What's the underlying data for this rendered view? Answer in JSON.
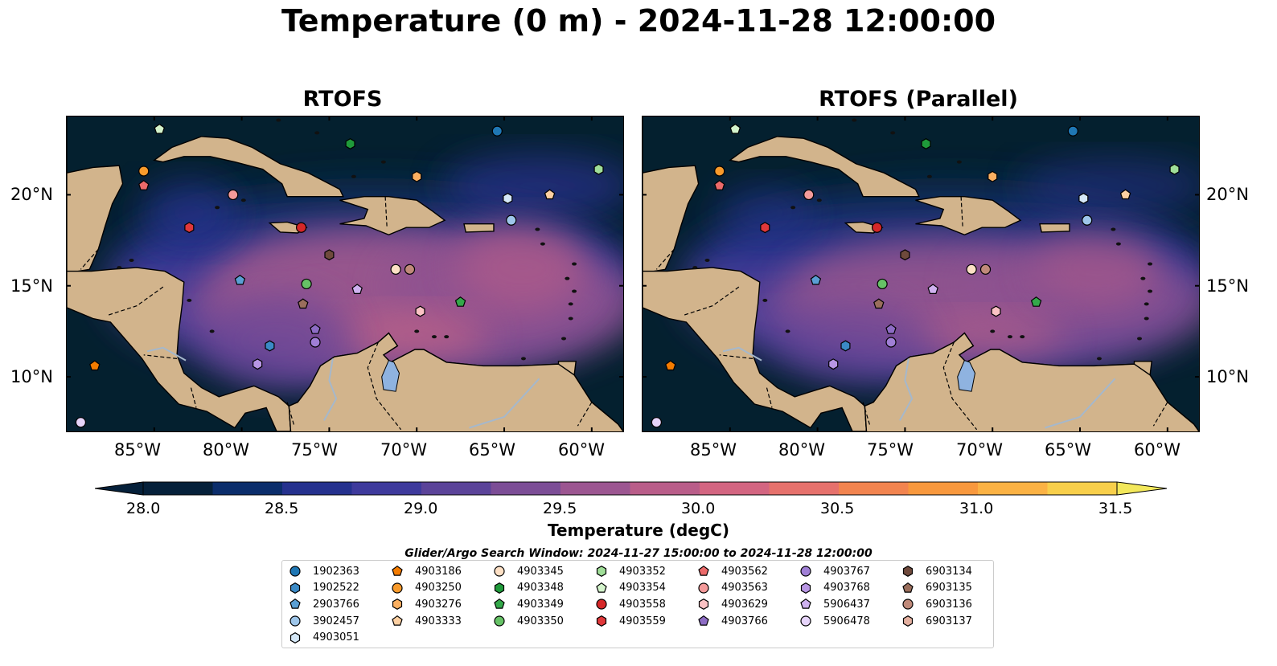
{
  "suptitle": "Temperature (0 m) - 2024-11-28 12:00:00",
  "panels": [
    {
      "title": "RTOFS"
    },
    {
      "title": "RTOFS (Parallel)"
    }
  ],
  "map": {
    "lat_labels": [
      "20°N",
      "15°N",
      "10°N"
    ],
    "lon_labels": [
      "85°W",
      "80°W",
      "75°W",
      "70°W",
      "65°W",
      "60°W"
    ],
    "land_color": "#d2b48c",
    "ocean_deep_color": "#04202f"
  },
  "colorbar": {
    "label": "Temperature (degC)",
    "ticks": [
      "28.0",
      "28.5",
      "29.0",
      "29.5",
      "30.0",
      "30.5",
      "31.0",
      "31.5"
    ],
    "range": [
      28.0,
      31.5
    ],
    "colors": [
      "#05203a",
      "#0b2d6b",
      "#25318e",
      "#3e3a9c",
      "#5b4399",
      "#7c4d96",
      "#9c5691",
      "#b95d89",
      "#d36581",
      "#e6716c",
      "#f2844f",
      "#f8983d",
      "#fbb244",
      "#f8cf4b",
      "#f3e85b"
    ]
  },
  "legend": {
    "title": "Glider/Argo Search Window: 2024-11-27 15:00:00 to 2024-11-28 12:00:00",
    "items": [
      {
        "id": "1902363",
        "color": "#1f77b4",
        "marker": "circle"
      },
      {
        "id": "1902522",
        "color": "#3b8ac6",
        "marker": "hexagon"
      },
      {
        "id": "2903766",
        "color": "#5a9fd4",
        "marker": "pentagon"
      },
      {
        "id": "3902457",
        "color": "#9ec6ea",
        "marker": "circle"
      },
      {
        "id": "4903051",
        "color": "#d5e8f8",
        "marker": "hexagon"
      },
      {
        "id": "4903186",
        "color": "#f57c00",
        "marker": "pentagon"
      },
      {
        "id": "4903250",
        "color": "#f89a2b",
        "marker": "circle"
      },
      {
        "id": "4903276",
        "color": "#fbb061",
        "marker": "hexagon"
      },
      {
        "id": "4903333",
        "color": "#fdd0a2",
        "marker": "pentagon"
      },
      {
        "id": "4903345",
        "color": "#fde0c5",
        "marker": "circle"
      },
      {
        "id": "4903348",
        "color": "#1f9a3a",
        "marker": "hexagon"
      },
      {
        "id": "4903349",
        "color": "#34a84a",
        "marker": "pentagon"
      },
      {
        "id": "4903350",
        "color": "#66c266",
        "marker": "circle"
      },
      {
        "id": "4903352",
        "color": "#a0de98",
        "marker": "hexagon"
      },
      {
        "id": "4903354",
        "color": "#d4f4cc",
        "marker": "pentagon"
      },
      {
        "id": "4903558",
        "color": "#d62728",
        "marker": "circle"
      },
      {
        "id": "4903559",
        "color": "#e0383a",
        "marker": "hexagon"
      },
      {
        "id": "4903562",
        "color": "#ec6a6a",
        "marker": "pentagon"
      },
      {
        "id": "4903563",
        "color": "#f49a9a",
        "marker": "circle"
      },
      {
        "id": "4903629",
        "color": "#fbc2c4",
        "marker": "hexagon"
      },
      {
        "id": "4903766",
        "color": "#8d6cc4",
        "marker": "pentagon"
      },
      {
        "id": "4903767",
        "color": "#a07fd6",
        "marker": "circle"
      },
      {
        "id": "4903768",
        "color": "#b896e4",
        "marker": "hexagon"
      },
      {
        "id": "5906437",
        "color": "#cfb2f0",
        "marker": "pentagon"
      },
      {
        "id": "5906478",
        "color": "#e6d4fa",
        "marker": "circle"
      },
      {
        "id": "6903134",
        "color": "#6f4a3c",
        "marker": "hexagon"
      },
      {
        "id": "6903135",
        "color": "#9a6e5c",
        "marker": "pentagon"
      },
      {
        "id": "6903136",
        "color": "#c08a7a",
        "marker": "circle"
      },
      {
        "id": "6903137",
        "color": "#e4b0a0",
        "marker": "hexagon"
      }
    ]
  },
  "floats": [
    {
      "id": "1902363",
      "lon": -65.4,
      "lat": 23.5
    },
    {
      "id": "4903354",
      "lon": -84.7,
      "lat": 23.6
    },
    {
      "id": "4903348",
      "lon": -73.8,
      "lat": 22.8
    },
    {
      "id": "4903250",
      "lon": -85.6,
      "lat": 21.3
    },
    {
      "id": "4903562",
      "lon": -85.6,
      "lat": 20.5
    },
    {
      "id": "4903276",
      "lon": -70.0,
      "lat": 21.0
    },
    {
      "id": "4903352",
      "lon": -59.6,
      "lat": 21.4
    },
    {
      "id": "4903051",
      "lon": -64.8,
      "lat": 19.8
    },
    {
      "id": "4903333",
      "lon": -62.4,
      "lat": 20.0
    },
    {
      "id": "4903563",
      "lon": -80.5,
      "lat": 20.0
    },
    {
      "id": "3902457",
      "lon": -64.6,
      "lat": 18.6
    },
    {
      "id": "4903559",
      "lon": -83.0,
      "lat": 18.2
    },
    {
      "id": "4903558",
      "lon": -76.6,
      "lat": 18.2
    },
    {
      "id": "6903134",
      "lon": -75.0,
      "lat": 16.7
    },
    {
      "id": "4903345",
      "lon": -71.2,
      "lat": 15.9
    },
    {
      "id": "6903136",
      "lon": -70.4,
      "lat": 15.9
    },
    {
      "id": "2903766",
      "lon": -80.1,
      "lat": 15.3
    },
    {
      "id": "4903350",
      "lon": -76.3,
      "lat": 15.1
    },
    {
      "id": "5906437",
      "lon": -73.4,
      "lat": 14.8
    },
    {
      "id": "6903135",
      "lon": -76.5,
      "lat": 14.0
    },
    {
      "id": "4903349",
      "lon": -67.5,
      "lat": 14.1
    },
    {
      "id": "4903629",
      "lon": -69.8,
      "lat": 13.6
    },
    {
      "id": "4903766",
      "lon": -75.8,
      "lat": 12.6
    },
    {
      "id": "4903767",
      "lon": -75.8,
      "lat": 11.9
    },
    {
      "id": "1902522",
      "lon": -78.4,
      "lat": 11.7
    },
    {
      "id": "4903768",
      "lon": -79.1,
      "lat": 10.7
    },
    {
      "id": "4903186",
      "lon": -88.4,
      "lat": 10.6
    },
    {
      "id": "5906478",
      "lon": -89.2,
      "lat": 7.5
    }
  ]
}
